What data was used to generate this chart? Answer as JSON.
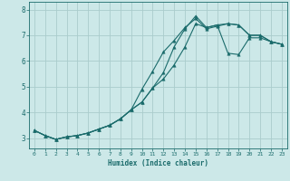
{
  "xlabel": "Humidex (Indice chaleur)",
  "bg_color": "#cce8e8",
  "grid_color": "#aacccc",
  "line_color": "#1a6b6b",
  "xlim": [
    -0.5,
    23.5
  ],
  "ylim": [
    2.6,
    8.3
  ],
  "xticks": [
    0,
    1,
    2,
    3,
    4,
    5,
    6,
    7,
    8,
    9,
    10,
    11,
    12,
    13,
    14,
    15,
    16,
    17,
    18,
    19,
    20,
    21,
    22,
    23
  ],
  "yticks": [
    3,
    4,
    5,
    6,
    7,
    8
  ],
  "curve1_x": [
    0,
    1,
    2,
    3,
    4,
    5,
    6,
    7,
    8,
    9,
    10,
    11,
    12,
    13,
    14,
    15,
    16,
    17,
    18,
    19,
    20,
    21,
    22,
    23
  ],
  "curve1_y": [
    3.3,
    3.1,
    2.95,
    3.05,
    3.1,
    3.2,
    3.35,
    3.5,
    3.75,
    4.1,
    4.9,
    5.6,
    6.35,
    6.8,
    7.3,
    7.65,
    7.25,
    7.35,
    7.45,
    7.4,
    7.0,
    7.0,
    6.75,
    6.65
  ],
  "curve2_x": [
    0,
    1,
    2,
    3,
    4,
    5,
    6,
    7,
    8,
    9,
    10,
    11,
    12,
    13,
    14,
    15,
    16,
    17,
    18,
    19,
    20,
    21,
    22,
    23
  ],
  "curve2_y": [
    3.3,
    3.1,
    2.95,
    3.05,
    3.1,
    3.2,
    3.35,
    3.5,
    3.75,
    4.1,
    4.4,
    4.95,
    5.55,
    6.55,
    7.25,
    7.75,
    7.3,
    7.4,
    7.45,
    7.4,
    7.0,
    7.0,
    6.75,
    6.65
  ],
  "curve3_x": [
    0,
    1,
    2,
    3,
    4,
    5,
    6,
    7,
    8,
    9,
    10,
    11,
    12,
    13,
    14,
    15,
    16,
    17,
    18,
    19,
    20,
    21,
    22,
    23
  ],
  "curve3_y": [
    3.3,
    3.1,
    2.95,
    3.05,
    3.1,
    3.2,
    3.35,
    3.5,
    3.75,
    4.1,
    4.4,
    4.95,
    5.3,
    5.85,
    6.55,
    7.45,
    7.3,
    7.4,
    6.3,
    6.25,
    6.9,
    6.9,
    6.75,
    6.65
  ]
}
